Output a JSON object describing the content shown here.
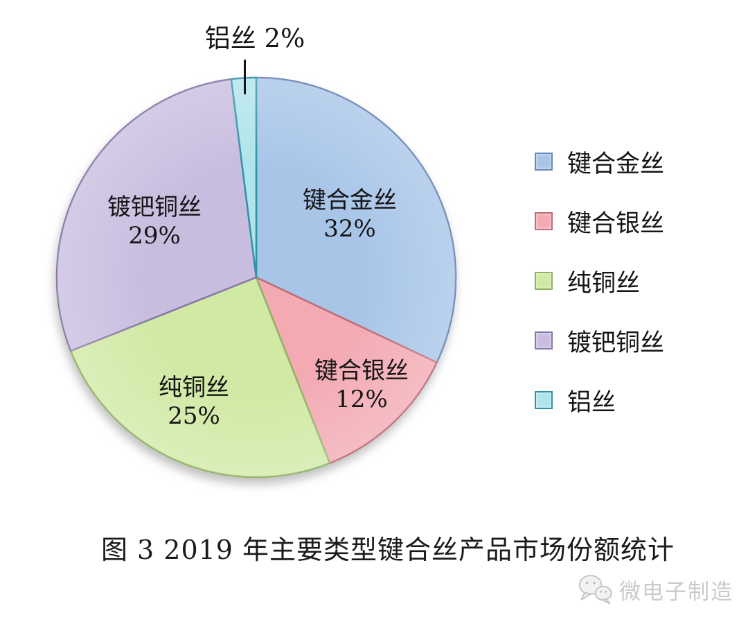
{
  "chart_data": {
    "type": "pie",
    "title": "图 3 2019 年主要类型键合丝产品市场份额统计",
    "direction": "clockwise",
    "start_angle": "12-o'clock",
    "legend_position": "right",
    "slices": [
      {
        "name": "键合金丝",
        "value": 32,
        "pct_label": "32%",
        "color": "#a8c5e8",
        "border": "#6a87b8"
      },
      {
        "name": "键合银丝",
        "value": 12,
        "pct_label": "12%",
        "color": "#f3aab3",
        "border": "#c06a77"
      },
      {
        "name": "纯铜丝",
        "value": 25,
        "pct_label": "25%",
        "color": "#d0e9a4",
        "border": "#90b263"
      },
      {
        "name": "镀钯铜丝",
        "value": 29,
        "pct_label": "29%",
        "color": "#c9bddf",
        "border": "#8678a8"
      },
      {
        "name": "铝丝",
        "value": 2,
        "pct_label": "2%",
        "color": "#afe4eb",
        "border": "#2f93a8"
      }
    ]
  },
  "watermark": {
    "text": "微电子制造",
    "icon": "wechat-chat-bubbles-icon",
    "color": "#cacaca"
  }
}
